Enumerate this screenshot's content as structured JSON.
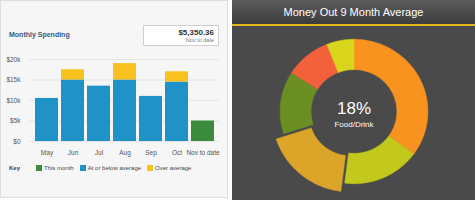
{
  "chart_data": [
    {
      "type": "bar",
      "title": "Monthly Spending",
      "stacked": true,
      "grid": true,
      "legend": "bottom",
      "legend_title": "Key",
      "annotations": [
        "$5,350.36",
        "Nov to date"
      ],
      "categories": [
        "May",
        "Jun",
        "Jul",
        "Aug",
        "Sep",
        "Oct",
        "Nov to date"
      ],
      "series": [
        {
          "name": "This month",
          "color": "#3b8a3e",
          "values": [
            0,
            0,
            0,
            0,
            0,
            0,
            5000
          ]
        },
        {
          "name": "At or below average",
          "color": "#1f93c7",
          "values": [
            10500,
            15000,
            13500,
            15000,
            11000,
            14500,
            0
          ]
        },
        {
          "name": "Over average",
          "color": "#f7c21f",
          "values": [
            0,
            2500,
            0,
            4000,
            0,
            2500,
            0
          ]
        }
      ],
      "ylim": [
        0,
        20000
      ],
      "yticks": [
        {
          "value": 0,
          "label": "$0"
        },
        {
          "value": 5000,
          "label": "$5k"
        },
        {
          "value": 10000,
          "label": "$10k"
        },
        {
          "value": 15000,
          "label": "$15k"
        },
        {
          "value": 20000,
          "label": "$20k"
        }
      ]
    },
    {
      "type": "pie",
      "title": "Money Out 9 Month Average",
      "categories": [
        null,
        null,
        "Food/Drink",
        null,
        null,
        null
      ],
      "values": [
        35,
        17,
        18,
        14,
        10,
        6
      ],
      "value_labels": [
        null,
        null,
        "18%",
        null,
        null,
        null
      ],
      "colors": [
        "#f7931e",
        "#c3c81c",
        "#dba52a",
        "#6b8e23",
        "#f2613c",
        "#d9d51c"
      ]
    }
  ]
}
